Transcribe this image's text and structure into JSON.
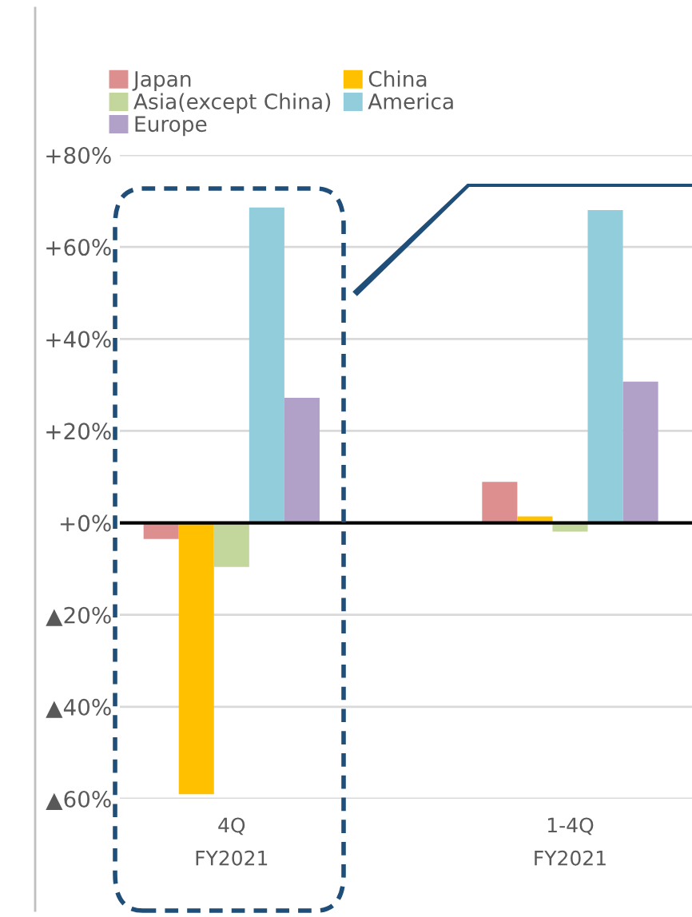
{
  "chart_data": {
    "type": "bar",
    "categories": [
      "4Q\nFY2021",
      "1-4Q\nFY2021"
    ],
    "series": [
      {
        "name": "Japan",
        "color": "#dd8e8e",
        "values": [
          -3.5,
          8.9
        ]
      },
      {
        "name": "China",
        "color": "#ffc000",
        "values": [
          -59,
          1.4
        ]
      },
      {
        "name": "Asia(except China)",
        "color": "#c3d69b",
        "values": [
          -9.6,
          -1.9
        ]
      },
      {
        "name": "America",
        "color": "#92cddc",
        "values": [
          68.6,
          68
        ]
      },
      {
        "name": "Europe",
        "color": "#b1a0c7",
        "values": [
          27.2,
          30.7
        ]
      }
    ],
    "ylim": [
      -60,
      80
    ],
    "yticks": [
      {
        "value": -60,
        "label": "▲60%"
      },
      {
        "value": -40,
        "label": "▲40%"
      },
      {
        "value": -20,
        "label": "▲20%"
      },
      {
        "value": 0,
        "label": "+0%"
      },
      {
        "value": 20,
        "label": "+20%"
      },
      {
        "value": 40,
        "label": "+40%"
      },
      {
        "value": 60,
        "label": "+60%"
      },
      {
        "value": 80,
        "label": "+80%"
      }
    ],
    "grid": "y",
    "legend": "top"
  }
}
